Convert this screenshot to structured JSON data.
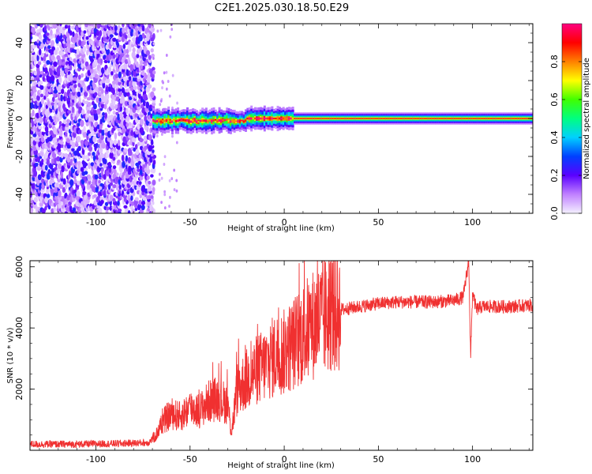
{
  "title": "C2E1.2025.030.18.50.E29",
  "chart_data": [
    {
      "type": "heatmap",
      "xlabel": "Height of straight line (km)",
      "ylabel": "Frequency (Hz)",
      "xlim": [
        -135,
        132
      ],
      "ylim": [
        -50,
        50
      ],
      "xticks": [
        -100,
        -50,
        0,
        50,
        100
      ],
      "yticks": [
        -40,
        -20,
        0,
        20,
        40
      ],
      "colorbar": {
        "label": "Normalized spectral amplitude",
        "range": [
          0.0,
          1.0
        ],
        "ticks": [
          "0.0",
          "0.2",
          "0.4",
          "0.6",
          "0.8"
        ],
        "tick_values": [
          0.0,
          0.2,
          0.4,
          0.6,
          0.8
        ],
        "stops": [
          {
            "v": 0.0,
            "color": "#f4f0ff"
          },
          {
            "v": 0.1,
            "color": "#c080ff"
          },
          {
            "v": 0.2,
            "color": "#5a00ff"
          },
          {
            "v": 0.3,
            "color": "#0040ff"
          },
          {
            "v": 0.4,
            "color": "#00d0ff"
          },
          {
            "v": 0.5,
            "color": "#00ff80"
          },
          {
            "v": 0.6,
            "color": "#40ff00"
          },
          {
            "v": 0.7,
            "color": "#ffff00"
          },
          {
            "v": 0.8,
            "color": "#ff8000"
          },
          {
            "v": 0.9,
            "color": "#ff0000"
          },
          {
            "v": 1.0,
            "color": "#ff0080"
          }
        ]
      },
      "noise_region_x": [
        -135,
        -70
      ],
      "signal_band_x": [
        -70,
        132
      ],
      "signal_center_freq": 0
    },
    {
      "type": "line",
      "xlabel": "Height of straight line (km)",
      "ylabel": "SNR (10 * v/v)",
      "xlim": [
        -135,
        132
      ],
      "ylim": [
        0,
        6200
      ],
      "xticks": [
        -100,
        -50,
        0,
        50,
        100
      ],
      "yticks": [
        2000,
        4000,
        6000
      ],
      "series": [
        {
          "color": "#f03030",
          "x": [
            -135,
            -110,
            -90,
            -72,
            -68,
            -65,
            -60,
            -55,
            -50,
            -45,
            -40,
            -35,
            -30,
            -28,
            -25,
            -20,
            -15,
            -10,
            -5,
            0,
            5,
            10,
            15,
            20,
            25,
            30,
            35,
            40,
            50,
            60,
            70,
            80,
            90,
            95,
            98,
            99,
            100,
            102,
            105,
            110,
            120,
            132
          ],
          "y": [
            200,
            200,
            220,
            250,
            500,
            900,
            1200,
            1100,
            1400,
            1300,
            1600,
            1700,
            1500,
            600,
            2000,
            2300,
            2600,
            2800,
            3100,
            3200,
            3500,
            3800,
            4100,
            4300,
            4500,
            4600,
            4650,
            4700,
            4800,
            4850,
            4850,
            4850,
            4900,
            5000,
            6200,
            3000,
            5200,
            4600,
            4700,
            4700,
            4700,
            4750
          ]
        }
      ]
    }
  ]
}
